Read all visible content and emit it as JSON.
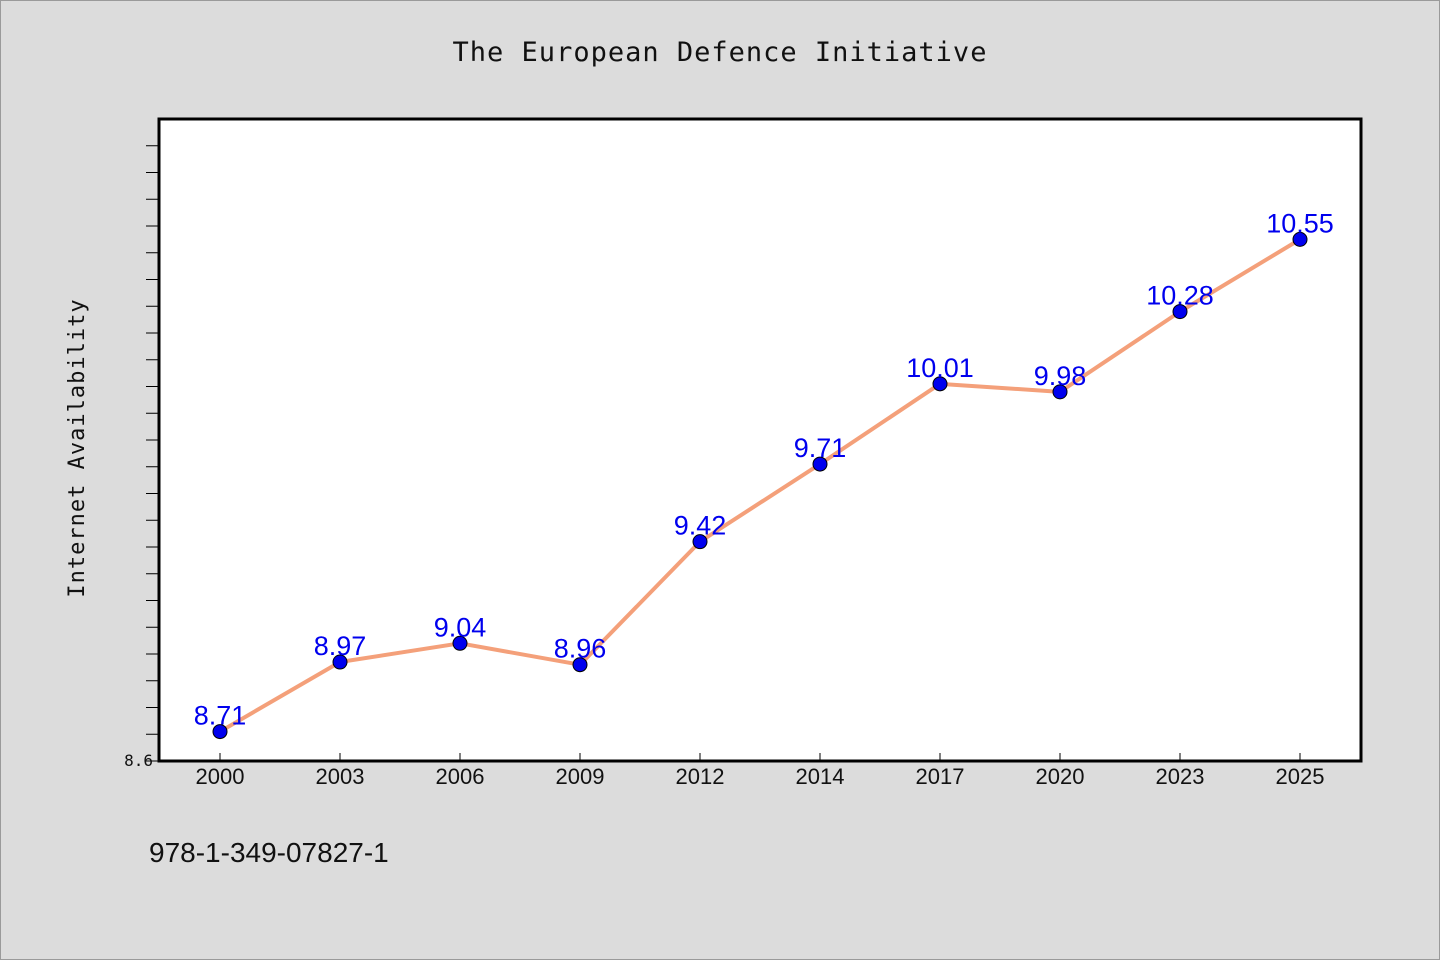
{
  "chart_data": {
    "type": "line",
    "title": "The European Defence Initiative",
    "xlabel": "",
    "ylabel": "Internet Availability",
    "categories": [
      "2000",
      "2003",
      "2006",
      "2009",
      "2012",
      "2014",
      "2017",
      "2020",
      "2023",
      "2025"
    ],
    "series": [
      {
        "values": [
          8.71,
          8.97,
          9.04,
          8.96,
          9.42,
          9.71,
          10.01,
          9.98,
          10.28,
          10.55
        ]
      }
    ],
    "data_labels": [
      "8.71",
      "8.97",
      "9.04",
      "8.96",
      "9.42",
      "9.71",
      "10.01",
      "9.98",
      "10.28",
      "10.55"
    ],
    "ylim": [
      8.6,
      11.0
    ],
    "y_tick_labels": [
      "8.6"
    ],
    "grid": false,
    "line_color": "#f4a07a",
    "marker_color": "#0000ee",
    "label_color": "#0000ee",
    "background_color": "#dcdcdc"
  },
  "footer": {
    "isbn": "978-1-349-07827-1"
  }
}
